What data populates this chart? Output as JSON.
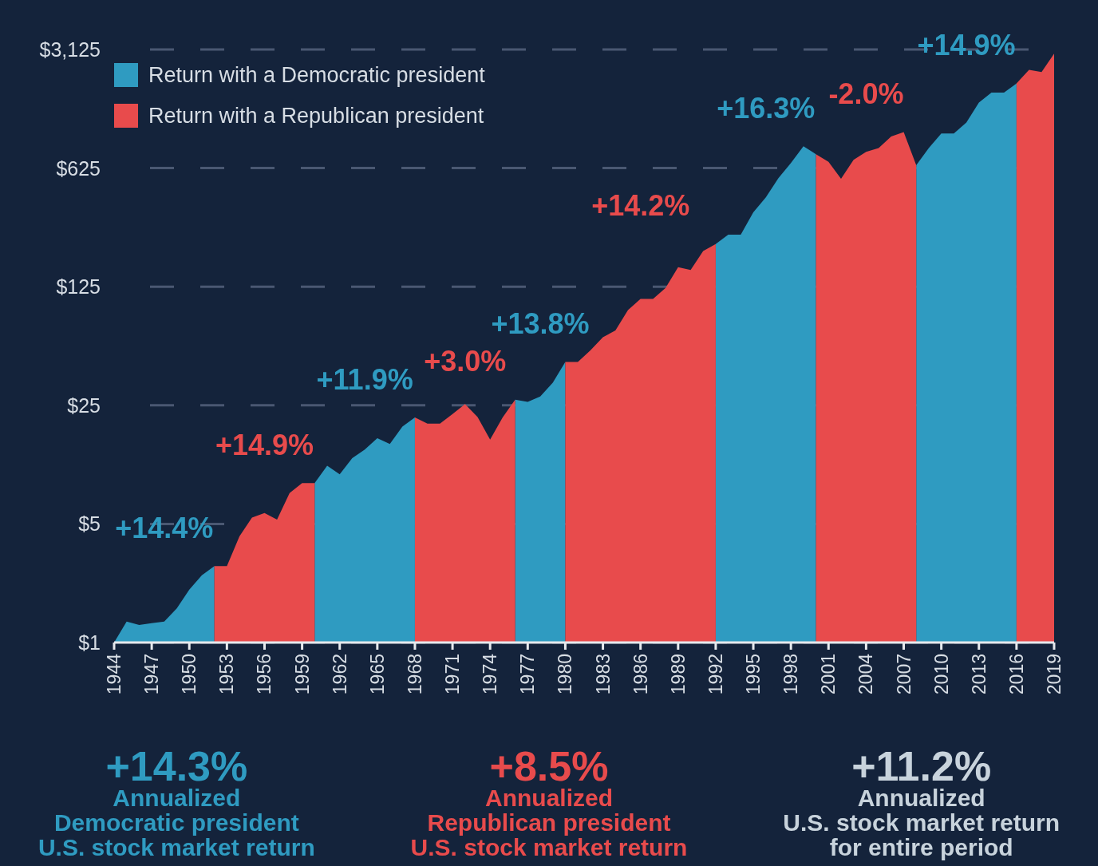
{
  "chart_data": {
    "type": "area",
    "log": "y",
    "grid": "y",
    "legend": "top left",
    "xlim": [
      1944,
      2019
    ],
    "xticks": [
      1944,
      1947,
      1950,
      1953,
      1956,
      1959,
      1962,
      1965,
      1968,
      1971,
      1974,
      1977,
      1980,
      1983,
      1986,
      1989,
      1992,
      1995,
      1998,
      2001,
      2004,
      2007,
      2010,
      2013,
      2016,
      2019
    ],
    "ylim": [
      1,
      3125
    ],
    "yticks": [
      {
        "value": 1,
        "label": "$1"
      },
      {
        "value": 5,
        "label": "$5"
      },
      {
        "value": 25,
        "label": "$25"
      },
      {
        "value": 125,
        "label": "$125"
      },
      {
        "value": 625,
        "label": "$625"
      },
      {
        "value": 3125,
        "label": "$3,125"
      }
    ],
    "series": [
      {
        "name": "Return with a Democratic president",
        "color": "#2f9bc1",
        "x": [
          1944,
          1945,
          1946,
          1947,
          1948,
          1949,
          1950,
          1951,
          1952,
          1956,
          1960,
          1961,
          1962,
          1963,
          1964,
          1965,
          1966,
          1967,
          1968,
          1972,
          1976,
          1977,
          1978,
          1979,
          1980,
          1986,
          1992,
          1993,
          1994,
          1995,
          1996,
          1997,
          1998,
          1999,
          2000,
          2004,
          2008,
          2009,
          2010,
          2011,
          2012,
          2013,
          2014,
          2015,
          2016
        ],
        "values": [
          1,
          1.33,
          1.27,
          1.3,
          1.33,
          1.59,
          2.05,
          2.49,
          2.82,
          null,
          8.7,
          11,
          9.8,
          12.2,
          13.7,
          16,
          14.8,
          18.7,
          21.2,
          null,
          27,
          26.2,
          28.2,
          34,
          45,
          null,
          223,
          253,
          253,
          343,
          420,
          545,
          670,
          840,
          755,
          null,
          650,
          820,
          1000,
          1000,
          1160,
          1520,
          1740,
          1740,
          1970
        ]
      },
      {
        "name": "Return with a Republican president",
        "color": "#e84b4c",
        "x": [
          1952,
          1953,
          1954,
          1955,
          1956,
          1957,
          1958,
          1959,
          1960,
          1964,
          1968,
          1969,
          1970,
          1971,
          1972,
          1973,
          1974,
          1975,
          1976,
          1978,
          1980,
          1981,
          1982,
          1983,
          1984,
          1985,
          1986,
          1987,
          1988,
          1989,
          1990,
          1991,
          1992,
          1996,
          2000,
          2001,
          2002,
          2003,
          2004,
          2005,
          2006,
          2007,
          2008,
          2012,
          2016,
          2017,
          2018,
          2019
        ],
        "values": [
          2.82,
          2.82,
          4.22,
          5.45,
          5.8,
          5.3,
          7.6,
          8.7,
          8.7,
          null,
          21.2,
          19.5,
          19.5,
          22.2,
          25.4,
          21.3,
          15.7,
          21.2,
          27,
          null,
          45,
          45,
          52.7,
          63,
          69,
          91,
          106,
          106,
          123,
          163,
          157,
          203,
          223,
          null,
          755,
          680,
          540,
          700,
          780,
          820,
          960,
          1020,
          650,
          null,
          1970,
          2370,
          2300,
          2950
        ]
      }
    ],
    "annotations": [
      "+14.4%",
      "+14.9%",
      "+11.9%",
      "+3.0%",
      "+13.8%",
      "+14.2%",
      "+16.3%",
      "-2.0%",
      "+14.9%",
      "+14.3%\nAnnualized\nDemocratic president\nU.S. stock market return",
      "+8.5%\nAnnualized\nRepublican president\nU.S. stock market return",
      "+11.2%\nAnnualized\nU.S. stock market return\nfor entire period"
    ]
  }
}
